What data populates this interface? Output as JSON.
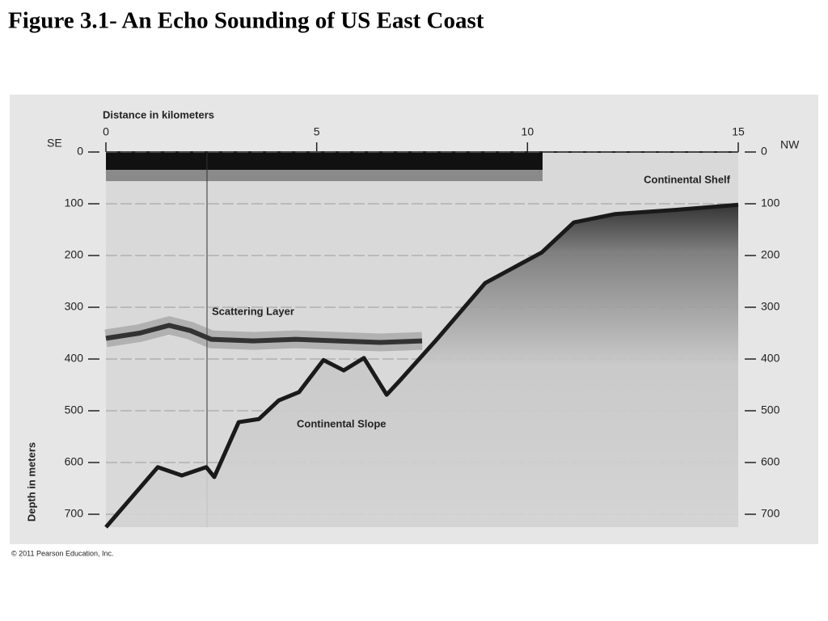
{
  "chart_data": {
    "type": "line",
    "title": "Figure 3.1- An Echo Sounding of US East Coast",
    "x_label": "Distance in kilometers",
    "y_label": "Depth in meters",
    "left_end_label": "SE",
    "right_end_label": "NW",
    "xlim": [
      0,
      15
    ],
    "xticks": [
      0,
      5,
      10,
      15
    ],
    "ylim": [
      0,
      725
    ],
    "yticks": [
      0,
      100,
      200,
      300,
      400,
      500,
      600,
      700
    ],
    "y_inverted": true,
    "series": [
      {
        "color": "#1a1a1a",
        "x": [
          0,
          1.23,
          1.8,
          2.38,
          2.57,
          3.15,
          3.63,
          4.1,
          4.58,
          5.16,
          5.64,
          6.12,
          6.66,
          6.98,
          7.85,
          9.0,
          10.34,
          11.1,
          12.07,
          13.5,
          15
        ],
        "values": [
          725,
          609,
          625,
          609,
          628,
          522,
          516,
          480,
          464,
          402,
          422,
          398,
          469,
          441,
          362,
          253,
          194,
          136,
          120,
          112,
          102
        ]
      },
      {
        "color": "#333333",
        "x": [
          0,
          0.8,
          1.5,
          2.0,
          2.5,
          3.5,
          4.5,
          5.5,
          6.5,
          7.5
        ],
        "values": [
          360,
          350,
          335,
          345,
          362,
          365,
          362,
          365,
          368,
          365
        ]
      }
    ],
    "annotations": [
      "Continental Shelf",
      "Scattering Layer",
      "Continental Slope"
    ],
    "credit": "© 2011 Pearson Education, Inc."
  }
}
